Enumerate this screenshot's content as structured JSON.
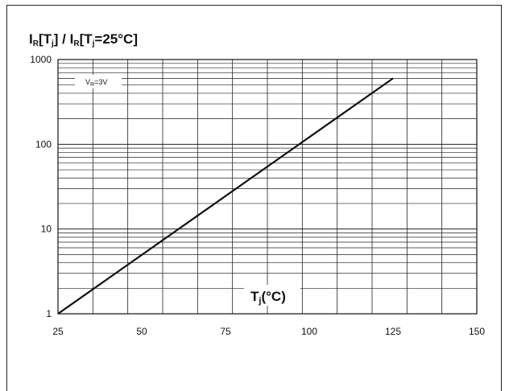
{
  "chart_data": {
    "type": "line",
    "title": {
      "i": "I",
      "r": "R",
      "lb": "[T",
      "j": "j",
      "mid": "] / I",
      "r2": "R",
      "lb2": "[T",
      "j2": "j",
      "tail": "=25°C]"
    },
    "xlabel": {
      "t": "T",
      "j": "j",
      "unit": "(°C)"
    },
    "annotation": {
      "v": "V",
      "r": "R",
      "val": "=3V"
    },
    "xlim": [
      25,
      150
    ],
    "ylim": [
      1,
      1000
    ],
    "yscale": "log",
    "grid": true,
    "x_ticks": [
      "25",
      "50",
      "75",
      "100",
      "125",
      "150"
    ],
    "y_ticks": [
      "1",
      "10",
      "100",
      "1000"
    ],
    "series": [
      {
        "x": [
          25,
          125
        ],
        "y": [
          1,
          600
        ]
      }
    ]
  }
}
